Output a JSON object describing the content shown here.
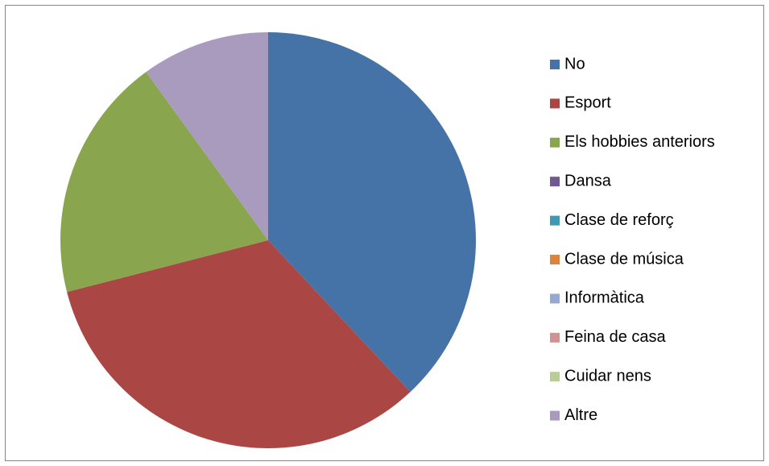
{
  "chart_data": {
    "type": "pie",
    "categories": [
      "No",
      "Esport",
      "Els hobbies anteriors",
      "Dansa",
      "Clase de reforç",
      "Clase de música",
      "Informàtica",
      "Feina de casa",
      "Cuidar nens",
      "Altre"
    ],
    "values": [
      38,
      33,
      19,
      0,
      0,
      0,
      0,
      0,
      0,
      10
    ],
    "colors": [
      "#4572a7",
      "#aa4643",
      "#89a54e",
      "#71588f",
      "#4198af",
      "#db843d",
      "#93a9cf",
      "#d19392",
      "#b9cd96",
      "#a99bbd"
    ],
    "legend": "right"
  }
}
